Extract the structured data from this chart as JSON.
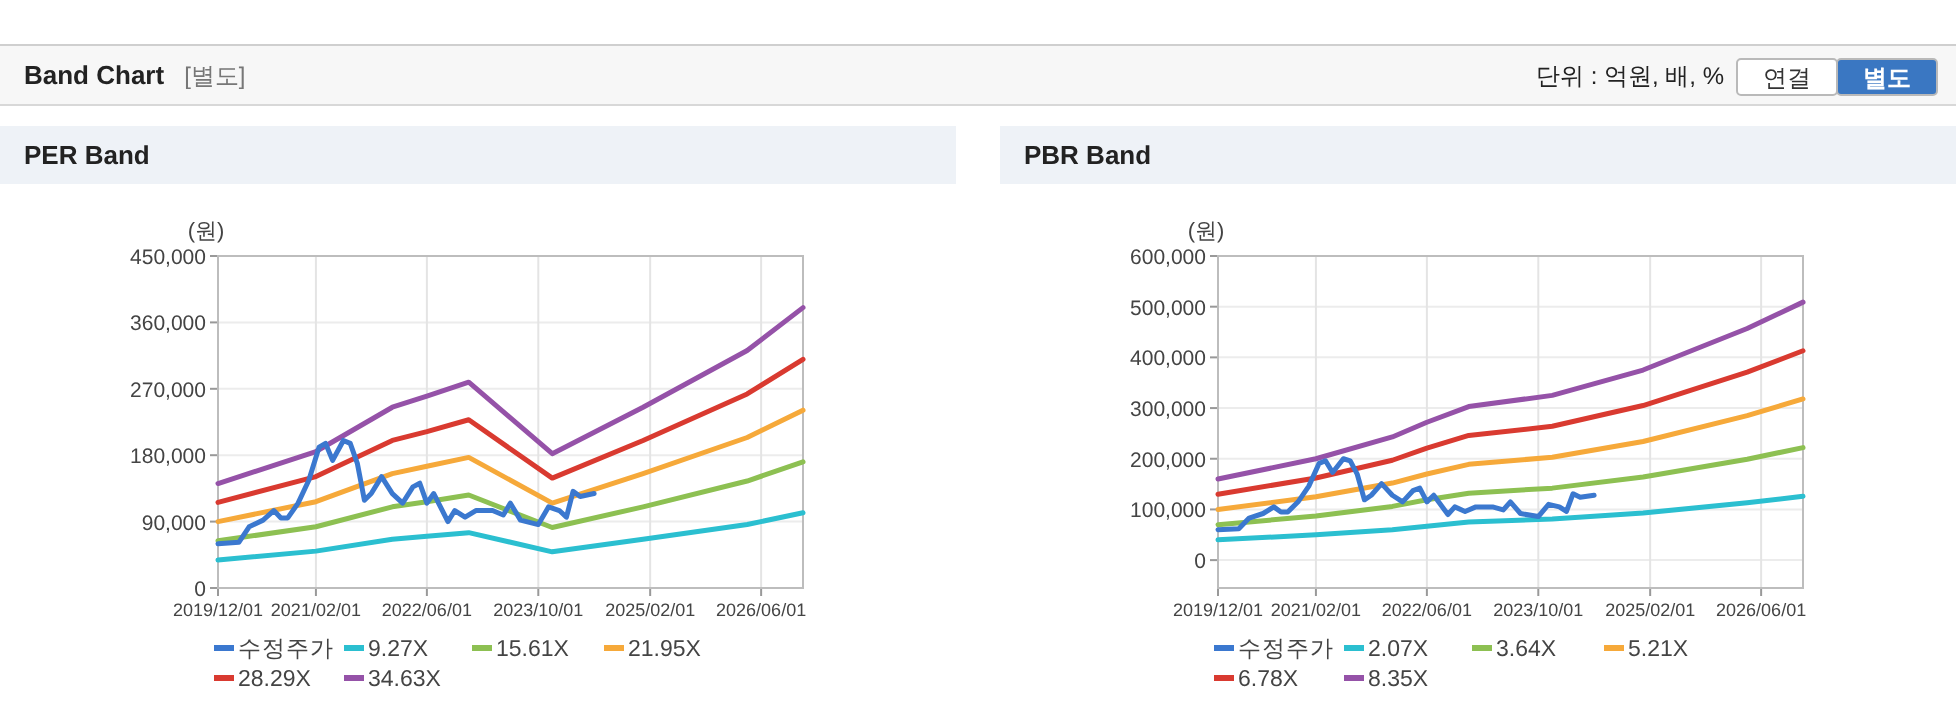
{
  "chart_data": [
    {
      "type": "other",
      "title": "Band Chart",
      "annotations": [
        "[별도]",
        "단위 : 억원, 배, %",
        "연결",
        "별도"
      ]
    },
    {
      "type": "line",
      "title": "PER Band",
      "ylabel": "(원)",
      "grid": true,
      "legend": "bottom",
      "marker": "none",
      "line_style": "solid",
      "xlim": [
        "2019-12-01",
        "2026-12-01"
      ],
      "xticks": [
        {
          "value": "2019-12-01",
          "label": "2019/12/01"
        },
        {
          "value": "2021-02-01",
          "label": "2021/02/01"
        },
        {
          "value": "2022-06-01",
          "label": "2022/06/01"
        },
        {
          "value": "2023-10-01",
          "label": "2023/10/01"
        },
        {
          "value": "2025-02-01",
          "label": "2025/02/01"
        },
        {
          "value": "2026-06-01",
          "label": "2026/06/01"
        }
      ],
      "ylim": [
        0,
        450000
      ],
      "yticks": [
        0,
        {
          "value": 90000,
          "label": "90,000"
        },
        {
          "value": 180000,
          "label": "180,000"
        },
        {
          "value": 270000,
          "label": "270,000"
        },
        {
          "value": 360000,
          "label": "360,000"
        },
        {
          "value": 450000,
          "label": "450,000"
        }
      ],
      "x": [
        "2019-12-01",
        "2021-02-01",
        "2022-01-01",
        "2022-06-01",
        "2022-12-01",
        "2023-12-01",
        "2025-01-01",
        "2026-04-01",
        "2026-12-01"
      ],
      "series": [
        {
          "name": "수정주가",
          "color": "#3b78cf",
          "x": [
            "2019-12-01",
            "2020-03-01",
            "2020-04-15",
            "2020-06-15",
            "2020-08-01",
            "2020-09-01",
            "2020-10-01",
            "2020-11-15",
            "2021-01-01",
            "2021-02-15",
            "2021-03-15",
            "2021-04-15",
            "2021-06-01",
            "2021-07-01",
            "2021-08-01",
            "2021-09-01",
            "2021-10-01",
            "2021-11-15",
            "2022-01-01",
            "2022-02-15",
            "2022-04-01",
            "2022-05-01",
            "2022-06-01",
            "2022-07-01",
            "2022-09-01",
            "2022-10-01",
            "2022-11-15",
            "2023-01-01",
            "2023-03-15",
            "2023-05-01",
            "2023-06-01",
            "2023-07-15",
            "2023-10-01",
            "2023-11-15",
            "2024-01-01",
            "2024-02-01",
            "2024-03-01",
            "2024-04-01",
            "2024-06-01"
          ],
          "values": [
            60000,
            62000,
            83000,
            92000,
            105000,
            95000,
            95000,
            115000,
            146000,
            191000,
            196000,
            173000,
            200000,
            196000,
            169000,
            119000,
            128000,
            151000,
            128000,
            115000,
            137000,
            142000,
            115000,
            128000,
            90000,
            105000,
            96000,
            105000,
            105000,
            99000,
            115000,
            92000,
            86000,
            110000,
            105000,
            96000,
            131000,
            124000,
            128000
          ]
        },
        {
          "name": "9.27X",
          "color": "#2bbfd0",
          "values": [
            38000,
            50000,
            66000,
            70000,
            75000,
            49000,
            66000,
            86000,
            102000
          ]
        },
        {
          "name": "15.61X",
          "color": "#8dc052",
          "values": [
            64000,
            83000,
            110000,
            117000,
            126000,
            82000,
            110000,
            145000,
            171000
          ]
        },
        {
          "name": "21.95X",
          "color": "#f6a93a",
          "values": [
            90000,
            117000,
            155000,
            165000,
            177000,
            115000,
            155000,
            204000,
            241000
          ]
        },
        {
          "name": "28.29X",
          "color": "#d93a30",
          "values": [
            116000,
            151000,
            200000,
            212000,
            228000,
            149000,
            200000,
            263000,
            310000
          ]
        },
        {
          "name": "34.63X",
          "color": "#9552a8",
          "values": [
            141600,
            185000,
            245000,
            260000,
            279000,
            182000,
            245000,
            322000,
            380000
          ]
        }
      ]
    },
    {
      "type": "line",
      "title": "PBR Band",
      "ylabel": "(원)",
      "grid": true,
      "legend": "bottom",
      "marker": "none",
      "line_style": "solid",
      "xlim": [
        "2019-12-01",
        "2026-12-01"
      ],
      "xticks": [
        {
          "value": "2019-12-01",
          "label": "2019/12/01"
        },
        {
          "value": "2021-02-01",
          "label": "2021/02/01"
        },
        {
          "value": "2022-06-01",
          "label": "2022/06/01"
        },
        {
          "value": "2023-10-01",
          "label": "2023/10/01"
        },
        {
          "value": "2025-02-01",
          "label": "2025/02/01"
        },
        {
          "value": "2026-06-01",
          "label": "2026/06/01"
        }
      ],
      "ylim": [
        -55000,
        600000
      ],
      "yticks": [
        0,
        {
          "value": 100000,
          "label": "100,000"
        },
        {
          "value": 200000,
          "label": "200,000"
        },
        {
          "value": 300000,
          "label": "300,000"
        },
        {
          "value": 400000,
          "label": "400,000"
        },
        {
          "value": 500000,
          "label": "500,000"
        },
        {
          "value": 600000,
          "label": "600,000"
        }
      ],
      "x": [
        "2019-12-01",
        "2021-02-01",
        "2022-01-01",
        "2022-06-01",
        "2022-12-01",
        "2023-12-01",
        "2025-01-01",
        "2026-04-01",
        "2026-12-01"
      ],
      "series": [
        {
          "name": "수정주가",
          "color": "#3b78cf",
          "x": [
            "2019-12-01",
            "2020-03-01",
            "2020-04-15",
            "2020-06-15",
            "2020-08-01",
            "2020-09-01",
            "2020-10-01",
            "2020-11-15",
            "2021-01-01",
            "2021-02-15",
            "2021-03-15",
            "2021-04-15",
            "2021-06-01",
            "2021-07-01",
            "2021-08-01",
            "2021-09-01",
            "2021-10-01",
            "2021-11-15",
            "2022-01-01",
            "2022-02-15",
            "2022-04-01",
            "2022-05-01",
            "2022-06-01",
            "2022-07-01",
            "2022-09-01",
            "2022-10-01",
            "2022-11-15",
            "2023-01-01",
            "2023-03-15",
            "2023-05-01",
            "2023-06-01",
            "2023-07-15",
            "2023-10-01",
            "2023-11-15",
            "2024-01-01",
            "2024-02-01",
            "2024-03-01",
            "2024-04-01",
            "2024-06-01"
          ],
          "values": [
            60000,
            62000,
            83000,
            92000,
            105000,
            95000,
            95000,
            115000,
            146000,
            191000,
            196000,
            173000,
            200000,
            196000,
            169000,
            119000,
            128000,
            151000,
            128000,
            115000,
            137000,
            142000,
            115000,
            128000,
            90000,
            105000,
            96000,
            105000,
            105000,
            99000,
            115000,
            92000,
            86000,
            110000,
            105000,
            96000,
            131000,
            124000,
            128000
          ]
        },
        {
          "name": "2.07X",
          "color": "#2bbfd0",
          "values": [
            40000,
            50000,
            60000,
            67000,
            75000,
            81000,
            93000,
            113000,
            126000
          ]
        },
        {
          "name": "3.64X",
          "color": "#8dc052",
          "values": [
            70000,
            87000,
            106000,
            119000,
            132000,
            142000,
            164000,
            199000,
            222000
          ]
        },
        {
          "name": "5.21X",
          "color": "#f6a93a",
          "values": [
            100000,
            125000,
            152000,
            170000,
            189000,
            203000,
            234000,
            285000,
            318000
          ]
        },
        {
          "name": "6.78X",
          "color": "#d93a30",
          "values": [
            130000,
            162000,
            197000,
            221000,
            246000,
            264000,
            305000,
            371000,
            413000
          ]
        },
        {
          "name": "8.35X",
          "color": "#9552a8",
          "values": [
            160000,
            200000,
            243000,
            272000,
            303000,
            325000,
            375000,
            457000,
            509000
          ]
        }
      ]
    }
  ]
}
